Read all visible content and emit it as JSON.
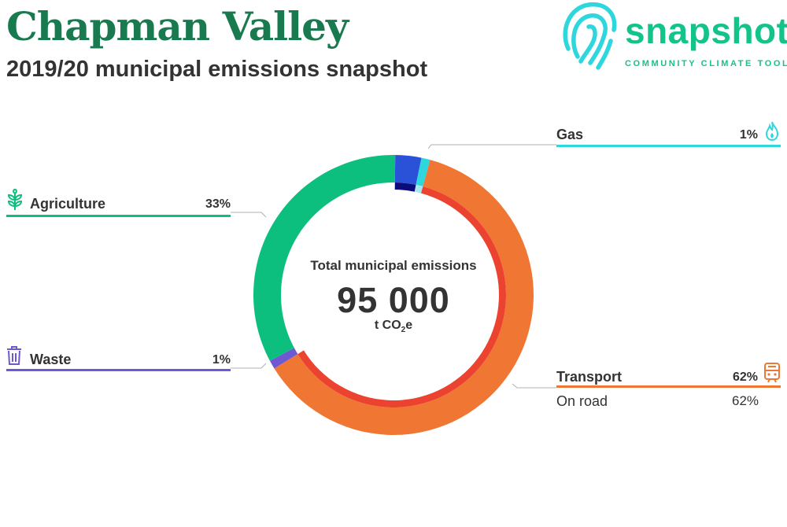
{
  "header": {
    "title": "Chapman Valley",
    "subtitle": "2019/20 municipal emissions snapshot"
  },
  "brand": {
    "name": "snapshot",
    "tagline": "COMMUNITY CLIMATE TOOL",
    "color": "#13c48a"
  },
  "center": {
    "label": "Total municipal emissions",
    "value": "95 000",
    "unit_prefix": "t CO",
    "unit_sub": "2",
    "unit_suffix": "e"
  },
  "chart_data": {
    "type": "pie",
    "variant": "donut",
    "total": 95000,
    "unit": "t CO2e",
    "categories": [
      {
        "name": "Transport",
        "percent_label": "62%",
        "share": 62,
        "color": "#f07733",
        "icon": "train-icon",
        "subcategories": [
          {
            "name": "On road",
            "percent_label": "62%",
            "share": 62,
            "color": "#ec4330"
          }
        ]
      },
      {
        "name": "Waste",
        "percent_label": "1%",
        "share": 1,
        "color": "#7058d2",
        "icon": "trash-can-icon"
      },
      {
        "name": "Agriculture",
        "percent_label": "33%",
        "share": 33,
        "color": "#0dbf7e",
        "icon": "plant-icon"
      },
      {
        "name": "",
        "percent_label": "",
        "share": 3,
        "color": "#2a52d8",
        "subcategories": [
          {
            "name": "",
            "share": 3,
            "color": "#0b0b7a"
          }
        ]
      },
      {
        "name": "Gas",
        "percent_label": "1%",
        "share": 1,
        "color": "#2ed6de",
        "icon": "flame-icon",
        "subcategories": [
          {
            "name": "",
            "share": 1,
            "color": "#a7e8ec"
          }
        ]
      }
    ]
  }
}
